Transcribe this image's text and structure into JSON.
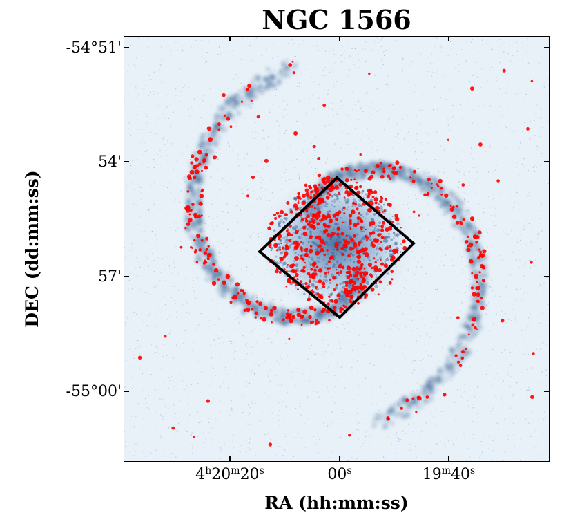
{
  "title": "NGC 1566",
  "axes": {
    "xlabel": "RA (hh:mm:ss)",
    "ylabel": "DEC (dd:mm:ss)",
    "yticks": [
      "-54°51'",
      "54'",
      "57'",
      "-55°00'"
    ],
    "xticks": [
      {
        "h": "4",
        "hu": "h",
        "m": "20",
        "mu": "m",
        "s": "20",
        "su": "s"
      },
      {
        "s": "00",
        "su": "s"
      },
      {
        "m": "19",
        "mu": "m",
        "s": "40",
        "su": "s"
      }
    ]
  },
  "colors": {
    "background": "#ffffff",
    "image_base": "#e9f1f8",
    "emission": "#1f4f86",
    "markers": "#ff0000",
    "footprint": "#000000"
  },
  "overlay": {
    "footprint_shape": "rotated-square",
    "markers": "red-circles"
  }
}
